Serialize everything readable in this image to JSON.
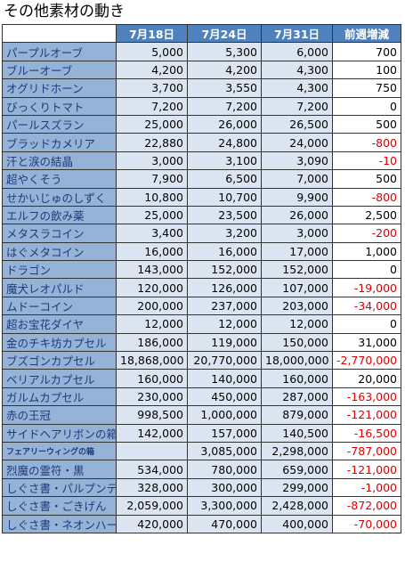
{
  "title": "その他素材の動き",
  "colors": {
    "header": "#4f81bd",
    "name_cell": "#95b3d7",
    "value_cell": "#dbe5f1",
    "negative": "#e00000"
  },
  "headers": [
    "",
    "7月18日",
    "7月24日",
    "7月31日",
    "前週増減"
  ],
  "rows": [
    {
      "name": "パープルオーブ",
      "d1": "5,000",
      "d2": "5,300",
      "d3": "6,000",
      "change": "700"
    },
    {
      "name": "ブルーオーブ",
      "d1": "4,200",
      "d2": "4,200",
      "d3": "4,300",
      "change": "100"
    },
    {
      "name": "オグリドホーン",
      "d1": "3,700",
      "d2": "3,550",
      "d3": "4,300",
      "change": "750"
    },
    {
      "name": "びっくりトマト",
      "d1": "7,200",
      "d2": "7,200",
      "d3": "7,200",
      "change": "0"
    },
    {
      "name": "パールスズラン",
      "d1": "25,000",
      "d2": "26,000",
      "d3": "26,500",
      "change": "500"
    },
    {
      "name": "ブラッドカメリア",
      "d1": "22,880",
      "d2": "24,800",
      "d3": "24,000",
      "change": "-800"
    },
    {
      "name": "汗と涙の結晶",
      "d1": "3,000",
      "d2": "3,100",
      "d3": "3,090",
      "change": "-10"
    },
    {
      "name": "超やくそう",
      "d1": "7,900",
      "d2": "6,500",
      "d3": "7,000",
      "change": "500"
    },
    {
      "name": "せかいじゅのしずく",
      "d1": "10,800",
      "d2": "10,700",
      "d3": "9,900",
      "change": "-800"
    },
    {
      "name": "エルフの飲み薬",
      "d1": "25,000",
      "d2": "23,500",
      "d3": "26,000",
      "change": "2,500"
    },
    {
      "name": "メタスラコイン",
      "d1": "3,400",
      "d2": "3,200",
      "d3": "3,000",
      "change": "-200"
    },
    {
      "name": "はぐメタコイン",
      "d1": "16,000",
      "d2": "16,000",
      "d3": "17,000",
      "change": "1,000"
    },
    {
      "name": "ドラゴン",
      "d1": "143,000",
      "d2": "152,000",
      "d3": "152,000",
      "change": "0"
    },
    {
      "name": "魔犬レオパルド",
      "d1": "120,000",
      "d2": "126,000",
      "d3": "107,000",
      "change": "-19,000"
    },
    {
      "name": "ムドーコイン",
      "d1": "200,000",
      "d2": "237,000",
      "d3": "203,000",
      "change": "-34,000"
    },
    {
      "name": "超お宝花ダイヤ",
      "d1": "12,000",
      "d2": "12,000",
      "d3": "12,000",
      "change": "0"
    },
    {
      "name": "金のチキ坊カプセル",
      "d1": "186,000",
      "d2": "119,000",
      "d3": "150,000",
      "change": "31,000"
    },
    {
      "name": "ブズゴンカプセル",
      "d1": "18,868,000",
      "d2": "20,770,000",
      "d3": "18,000,000",
      "change": "-2,770,000"
    },
    {
      "name": "ベリアルカプセル",
      "d1": "160,000",
      "d2": "140,000",
      "d3": "160,000",
      "change": "20,000"
    },
    {
      "name": "ガルムカプセル",
      "d1": "230,000",
      "d2": "450,000",
      "d3": "287,000",
      "change": "-163,000"
    },
    {
      "name": "赤の王冠",
      "d1": "998,500",
      "d2": "1,000,000",
      "d3": "879,000",
      "change": "-121,000"
    },
    {
      "name": "サイドヘアリボンの箱",
      "d1": "142,000",
      "d2": "157,000",
      "d3": "140,500",
      "change": "-16,500"
    },
    {
      "name": "フェアリーウィングの箱",
      "d1": "",
      "d2": "3,085,000",
      "d3": "2,298,000",
      "change": "-787,000",
      "small": true
    },
    {
      "name": "烈魔の霊符・黒",
      "d1": "534,000",
      "d2": "780,000",
      "d3": "659,000",
      "change": "-121,000"
    },
    {
      "name": "しぐさ書・パルプンテ",
      "d1": "328,000",
      "d2": "300,000",
      "d3": "299,000",
      "change": "-1,000"
    },
    {
      "name": "しぐさ書・ごきげん",
      "d1": "2,059,000",
      "d2": "3,300,000",
      "d3": "2,428,000",
      "change": "-872,000"
    },
    {
      "name": "しぐさ書・ネオンハート",
      "d1": "420,000",
      "d2": "470,000",
      "d3": "400,000",
      "change": "-70,000"
    }
  ]
}
